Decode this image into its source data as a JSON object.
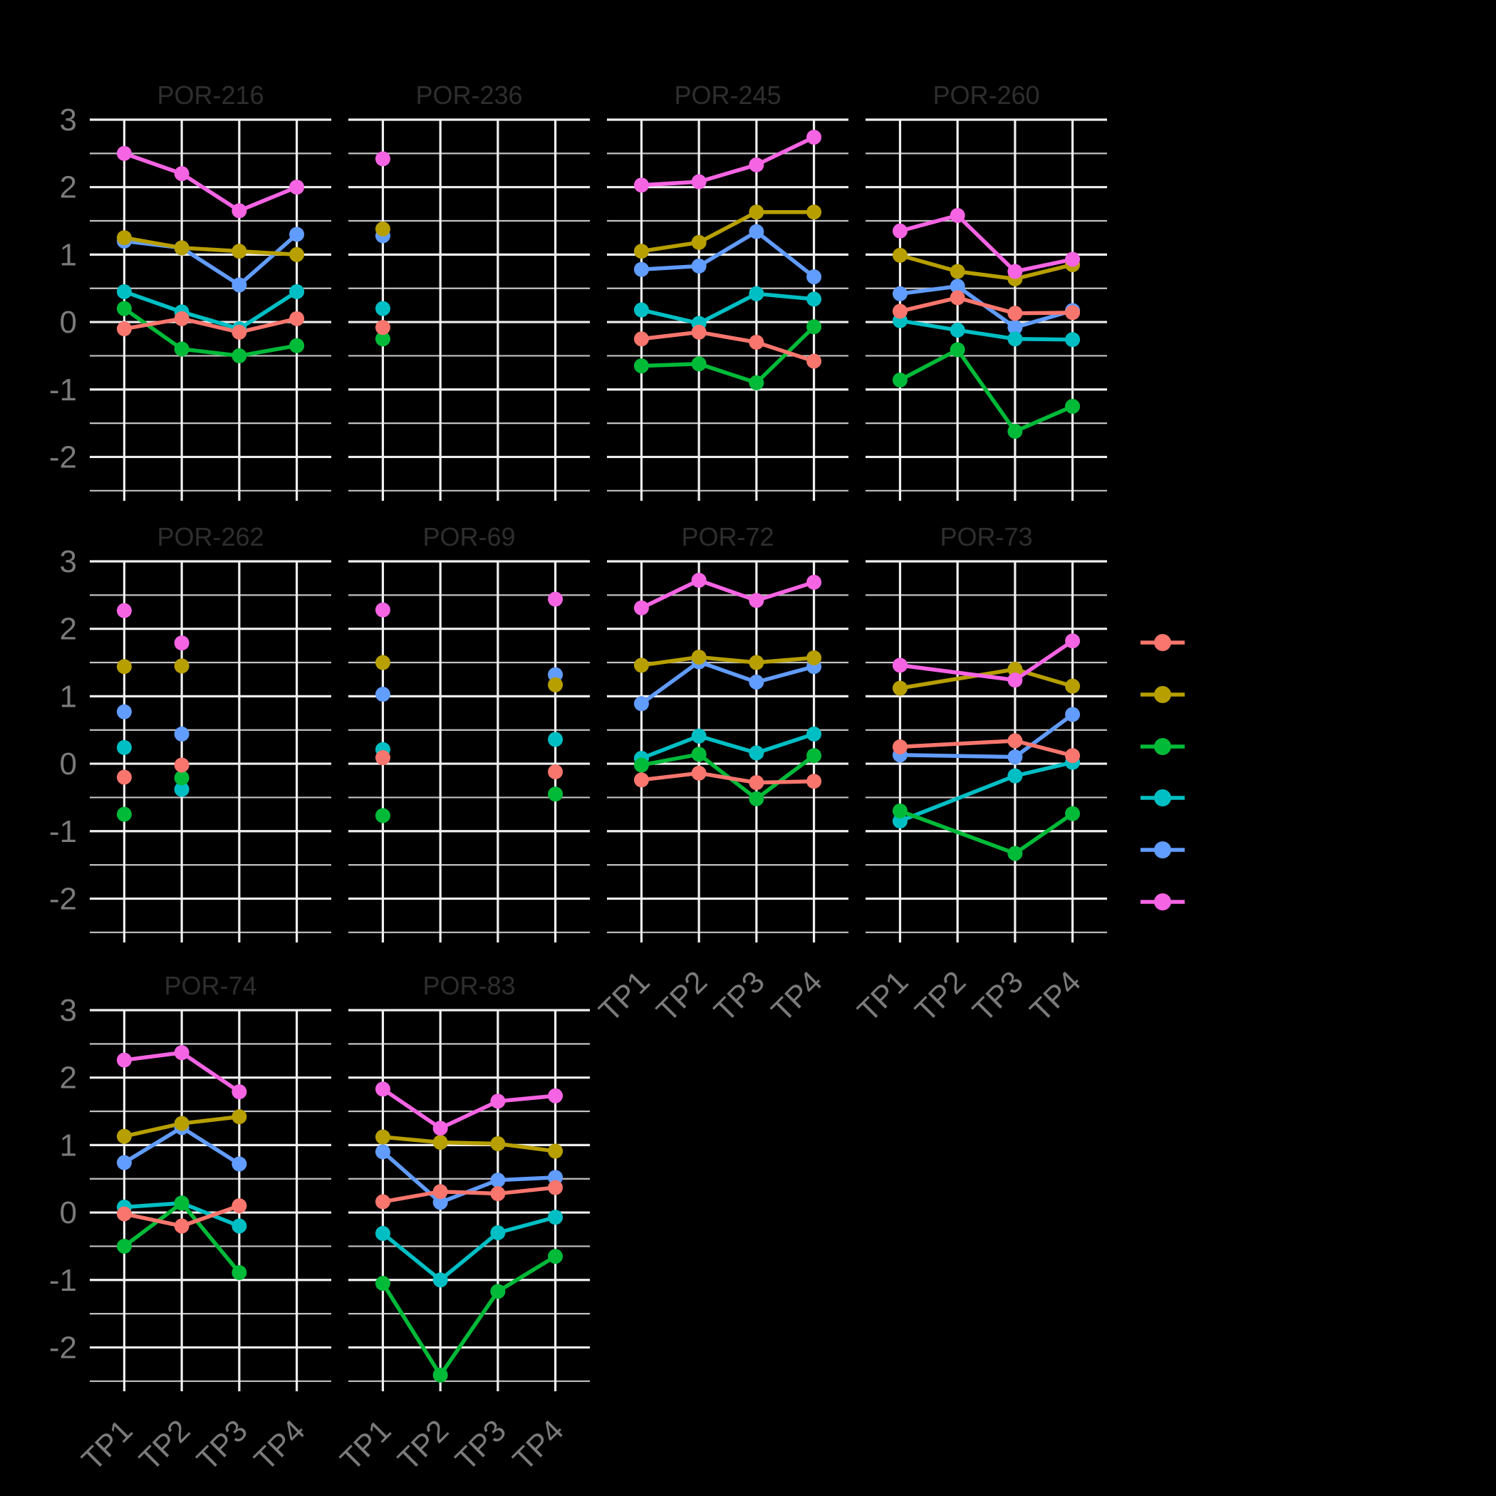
{
  "chart_data": {
    "type": "line",
    "title": "",
    "xlabel": "",
    "ylabel": "",
    "categories": [
      "TP1",
      "TP2",
      "TP3",
      "TP4"
    ],
    "y_ticks": [
      "3",
      "2",
      "1",
      "0",
      "-1",
      "-2"
    ],
    "ylim": [
      -2.65,
      3.0
    ],
    "grid": "on",
    "legend_position": "right",
    "background_color": "#000000",
    "grid_major_color": "#EFEFEF",
    "grid_minor_color": "#E4E4E4",
    "axis_text_color": "#7B7B7B",
    "panel_title_color": "#2E2E2E",
    "series_colors": {
      "salmon": "#F8766D",
      "olive": "#B79F00",
      "green": "#00BA38",
      "teal": "#00BFC4",
      "blue": "#619CFF",
      "magenta": "#F564E3"
    },
    "legend_order": [
      "salmon",
      "olive",
      "green",
      "teal",
      "blue",
      "magenta"
    ],
    "panels": [
      {
        "title": "POR-216",
        "lines": true,
        "series": {
          "salmon": [
            -0.1,
            0.05,
            -0.15,
            0.05
          ],
          "olive": [
            1.25,
            1.1,
            1.05,
            1.0
          ],
          "green": [
            0.2,
            -0.4,
            -0.5,
            -0.35
          ],
          "teal": [
            0.45,
            0.15,
            -0.1,
            0.45
          ],
          "blue": [
            1.2,
            1.1,
            0.55,
            1.3
          ],
          "magenta": [
            2.5,
            2.2,
            1.65,
            2.0
          ]
        }
      },
      {
        "title": "POR-236",
        "lines": false,
        "series": {
          "salmon": [
            -0.08,
            null,
            null,
            null
          ],
          "olive": [
            1.38,
            null,
            null,
            null
          ],
          "green": [
            -0.25,
            null,
            null,
            null
          ],
          "teal": [
            0.2,
            null,
            null,
            null
          ],
          "blue": [
            1.28,
            null,
            null,
            null
          ],
          "magenta": [
            2.42,
            null,
            null,
            null
          ]
        }
      },
      {
        "title": "POR-245",
        "lines": true,
        "series": {
          "salmon": [
            -0.25,
            -0.15,
            -0.3,
            -0.58
          ],
          "olive": [
            1.05,
            1.18,
            1.63,
            1.63
          ],
          "green": [
            -0.65,
            -0.62,
            -0.9,
            -0.07
          ],
          "teal": [
            0.18,
            -0.02,
            0.42,
            0.34
          ],
          "blue": [
            0.78,
            0.83,
            1.34,
            0.67
          ],
          "magenta": [
            2.03,
            2.08,
            2.33,
            2.74
          ]
        }
      },
      {
        "title": "POR-260",
        "lines": true,
        "series": {
          "salmon": [
            0.16,
            0.36,
            0.13,
            0.14
          ],
          "olive": [
            0.99,
            0.75,
            0.64,
            0.85
          ],
          "green": [
            -0.86,
            -0.41,
            -1.62,
            -1.25
          ],
          "teal": [
            0.02,
            -0.12,
            -0.25,
            -0.26
          ],
          "blue": [
            0.42,
            0.53,
            -0.08,
            0.17
          ],
          "magenta": [
            1.35,
            1.58,
            0.75,
            0.93
          ]
        }
      },
      {
        "title": "POR-262",
        "lines": false,
        "series": {
          "salmon": [
            -0.2,
            -0.02,
            null,
            null
          ],
          "olive": [
            1.44,
            1.45,
            null,
            null
          ],
          "green": [
            -0.75,
            -0.21,
            null,
            null
          ],
          "teal": [
            0.24,
            -0.38,
            null,
            null
          ],
          "blue": [
            0.77,
            0.44,
            null,
            null
          ],
          "magenta": [
            2.27,
            1.79,
            null,
            null
          ]
        }
      },
      {
        "title": "POR-69",
        "lines": false,
        "series": {
          "salmon": [
            0.09,
            null,
            null,
            -0.12
          ],
          "olive": [
            1.5,
            null,
            null,
            1.17
          ],
          "green": [
            -0.77,
            null,
            null,
            -0.45
          ],
          "teal": [
            0.21,
            null,
            null,
            0.36
          ],
          "blue": [
            1.03,
            null,
            null,
            1.32
          ],
          "magenta": [
            2.28,
            null,
            null,
            2.44
          ]
        }
      },
      {
        "title": "POR-72",
        "lines": true,
        "series": {
          "salmon": [
            -0.24,
            -0.14,
            -0.28,
            -0.26
          ],
          "olive": [
            1.46,
            1.58,
            1.5,
            1.57
          ],
          "green": [
            -0.02,
            0.14,
            -0.52,
            0.12
          ],
          "teal": [
            0.08,
            0.41,
            0.16,
            0.44
          ],
          "blue": [
            0.89,
            1.51,
            1.21,
            1.44
          ],
          "magenta": [
            2.31,
            2.72,
            2.42,
            2.69
          ]
        }
      },
      {
        "title": "POR-73",
        "lines": true,
        "series": {
          "salmon": [
            0.25,
            null,
            0.34,
            0.12
          ],
          "olive": [
            1.12,
            null,
            1.4,
            1.15
          ],
          "green": [
            -0.7,
            null,
            -1.33,
            -0.74
          ],
          "teal": [
            -0.85,
            null,
            -0.18,
            0.02
          ],
          "blue": [
            0.13,
            null,
            0.1,
            0.73
          ],
          "magenta": [
            1.46,
            null,
            1.24,
            1.82
          ]
        }
      },
      {
        "title": "POR-74",
        "lines": true,
        "series": {
          "salmon": [
            -0.02,
            -0.2,
            0.1,
            null
          ],
          "olive": [
            1.13,
            1.32,
            1.42,
            null
          ],
          "green": [
            -0.5,
            0.14,
            -0.89,
            null
          ],
          "teal": [
            0.08,
            0.14,
            -0.2,
            null
          ],
          "blue": [
            0.74,
            1.26,
            0.72,
            null
          ],
          "magenta": [
            2.26,
            2.37,
            1.79,
            null
          ]
        }
      },
      {
        "title": "POR-83",
        "lines": true,
        "series": {
          "salmon": [
            0.16,
            0.31,
            0.28,
            0.37
          ],
          "olive": [
            1.12,
            1.04,
            1.02,
            0.91
          ],
          "green": [
            -1.05,
            -2.41,
            -1.17,
            -0.65
          ],
          "teal": [
            -0.31,
            -1.0,
            -0.3,
            -0.07
          ],
          "blue": [
            0.9,
            0.15,
            0.48,
            0.52
          ],
          "magenta": [
            1.83,
            1.25,
            1.65,
            1.73
          ]
        }
      }
    ]
  }
}
